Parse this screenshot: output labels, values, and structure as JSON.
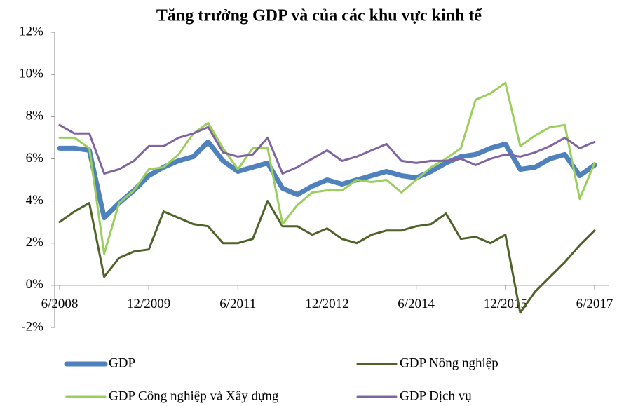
{
  "chart_data": {
    "type": "line",
    "title": "Tăng trưởng GDP và của các khu vực kinh tế",
    "categories": [
      "6/2008",
      null,
      null,
      null,
      null,
      null,
      "12/2009",
      null,
      null,
      null,
      null,
      null,
      "6/2011",
      null,
      null,
      null,
      null,
      null,
      "12/2012",
      null,
      null,
      null,
      null,
      null,
      "6/2014",
      null,
      null,
      null,
      null,
      null,
      "12/2015",
      null,
      null,
      null,
      null,
      null,
      "6/2017"
    ],
    "series": [
      {
        "name": "GDP",
        "color": "#4f81bd",
        "values": [
          6.5,
          6.5,
          6.4,
          3.2,
          3.9,
          4.5,
          5.2,
          5.6,
          5.9,
          6.1,
          6.8,
          5.9,
          5.4,
          5.6,
          5.8,
          4.6,
          4.3,
          4.7,
          5.0,
          4.8,
          5.0,
          5.2,
          5.4,
          5.2,
          5.1,
          5.4,
          5.8,
          6.1,
          6.2,
          6.5,
          6.7,
          5.5,
          5.6,
          6.0,
          6.2,
          5.2,
          5.7
        ]
      },
      {
        "name": "GDP Nông nghiệp",
        "color": "#4f6228",
        "values": [
          3.0,
          3.5,
          3.9,
          0.4,
          1.3,
          1.6,
          1.7,
          3.5,
          3.2,
          2.9,
          2.8,
          2.0,
          2.0,
          2.2,
          4.0,
          2.8,
          2.8,
          2.4,
          2.7,
          2.2,
          2.0,
          2.4,
          2.6,
          2.6,
          2.8,
          2.9,
          3.4,
          2.2,
          2.3,
          2.0,
          2.4,
          -1.3,
          -0.3,
          0.4,
          1.1,
          1.9,
          2.6
        ]
      },
      {
        "name": "GDP Công nghiệp và Xây dựng",
        "color": "#9bcf5b",
        "values": [
          7.0,
          7.0,
          6.5,
          1.5,
          3.9,
          4.5,
          5.5,
          5.6,
          6.2,
          7.2,
          7.7,
          6.5,
          5.5,
          6.5,
          6.5,
          2.9,
          3.8,
          4.4,
          4.5,
          4.5,
          5.0,
          4.9,
          5.0,
          4.4,
          5.0,
          5.6,
          6.0,
          6.5,
          8.8,
          9.1,
          9.6,
          6.6,
          7.1,
          7.5,
          7.6,
          4.1,
          5.8
        ]
      },
      {
        "name": "GDP Dịch vụ",
        "color": "#8064a2",
        "values": [
          7.6,
          7.2,
          7.2,
          5.3,
          5.5,
          5.9,
          6.6,
          6.6,
          7.0,
          7.2,
          7.5,
          6.3,
          6.1,
          6.2,
          7.0,
          5.3,
          5.6,
          6.0,
          6.4,
          5.9,
          6.1,
          6.4,
          6.7,
          5.9,
          5.8,
          5.9,
          5.9,
          6.0,
          5.7,
          6.0,
          6.2,
          6.1,
          6.3,
          6.6,
          7.0,
          6.5,
          6.8
        ]
      }
    ],
    "ylim": [
      -2,
      12
    ],
    "yticks": [
      {
        "value": -2,
        "label": "-2%"
      },
      {
        "value": 0,
        "label": "0%"
      },
      {
        "value": 2,
        "label": "2%"
      },
      {
        "value": 4,
        "label": "4%"
      },
      {
        "value": 6,
        "label": "6%"
      },
      {
        "value": 8,
        "label": "8%"
      },
      {
        "value": 10,
        "label": "10%"
      },
      {
        "value": 12,
        "label": "12%"
      }
    ],
    "legend": "bottom"
  }
}
